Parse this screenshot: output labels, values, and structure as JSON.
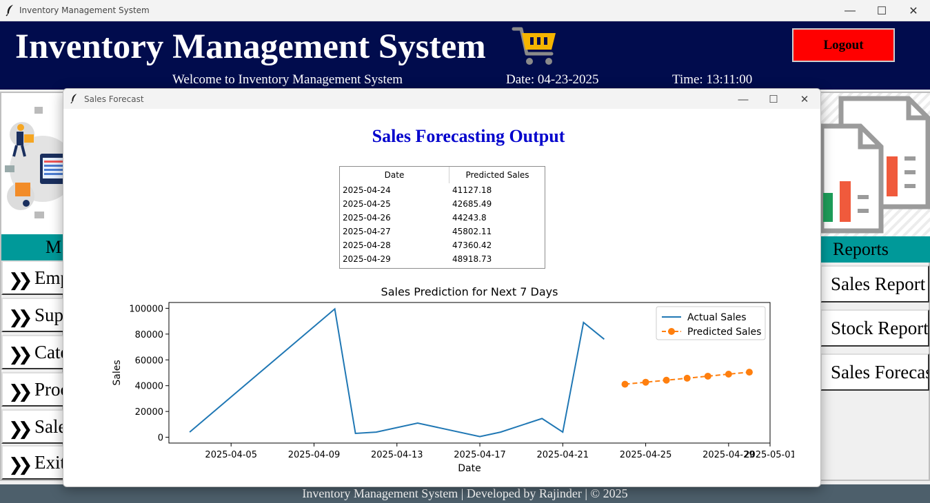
{
  "window": {
    "title": "Inventory Management System",
    "controls": {
      "minimize": "—",
      "maximize": "☐",
      "close": "✕"
    }
  },
  "header": {
    "title": "Inventory Management System",
    "logout_label": "Logout",
    "welcome": "Welcome to Inventory Management System",
    "date": "Date: 04-23-2025",
    "time": "Time: 13:11:00"
  },
  "left_menu": {
    "heading": "M",
    "items": [
      {
        "label": "Emp"
      },
      {
        "label": "Supp"
      },
      {
        "label": "Cate"
      },
      {
        "label": "Proc"
      },
      {
        "label": "Sale"
      },
      {
        "label": "Exit"
      }
    ]
  },
  "reports": {
    "heading": "Reports",
    "items": [
      {
        "label": "Sales Report"
      },
      {
        "label": "Stock Report"
      },
      {
        "label": "Sales Forecas"
      }
    ]
  },
  "footer": {
    "text": "Inventory Management System | Developed by Rajinder | © 2025"
  },
  "popup": {
    "title": "Sales Forecast",
    "heading": "Sales Forecasting Output",
    "table": {
      "headers": [
        "Date",
        "Predicted Sales"
      ],
      "rows": [
        [
          "2025-04-24",
          "41127.18"
        ],
        [
          "2025-04-25",
          "42685.49"
        ],
        [
          "2025-04-26",
          "44243.8"
        ],
        [
          "2025-04-27",
          "45802.11"
        ],
        [
          "2025-04-28",
          "47360.42"
        ],
        [
          "2025-04-29",
          "48918.73"
        ]
      ]
    }
  },
  "colors": {
    "header_bg": "#010c4d",
    "logout_bg": "#ff0000",
    "teal": "#009999",
    "footer_bg": "#4d5f6b",
    "heading_blue": "#0000cc",
    "actual_line": "#1f77b4",
    "predicted_line": "#ff7f0e"
  },
  "chart_data": {
    "type": "line",
    "title": "Sales Prediction for Next 7 Days",
    "xlabel": "Date",
    "ylabel": "Sales",
    "x_ticks": [
      "2025-04-05",
      "2025-04-09",
      "2025-04-13",
      "2025-04-17",
      "2025-04-21",
      "2025-04-25",
      "2025-04-29",
      "2025-05-01"
    ],
    "y_ticks": [
      0,
      20000,
      40000,
      60000,
      80000,
      100000
    ],
    "xlim": [
      "2025-04-02",
      "2025-05-01"
    ],
    "ylim": [
      -4500,
      104500
    ],
    "legend_position": "top-right",
    "series": [
      {
        "name": "Actual Sales",
        "style": "solid",
        "points": [
          [
            "2025-04-03",
            4000
          ],
          [
            "2025-04-10",
            99500
          ],
          [
            "2025-04-11",
            3000
          ],
          [
            "2025-04-12",
            4000
          ],
          [
            "2025-04-14",
            11000
          ],
          [
            "2025-04-17",
            500
          ],
          [
            "2025-04-18",
            4000
          ],
          [
            "2025-04-20",
            14500
          ],
          [
            "2025-04-21",
            4000
          ],
          [
            "2025-04-22",
            89000
          ],
          [
            "2025-04-23",
            76000
          ]
        ]
      },
      {
        "name": "Predicted Sales",
        "style": "dashed-markers",
        "points": [
          [
            "2025-04-24",
            41127.18
          ],
          [
            "2025-04-25",
            42685.49
          ],
          [
            "2025-04-26",
            44243.8
          ],
          [
            "2025-04-27",
            45802.11
          ],
          [
            "2025-04-28",
            47360.42
          ],
          [
            "2025-04-29",
            48918.73
          ],
          [
            "2025-04-30",
            50477.04
          ]
        ]
      }
    ]
  }
}
